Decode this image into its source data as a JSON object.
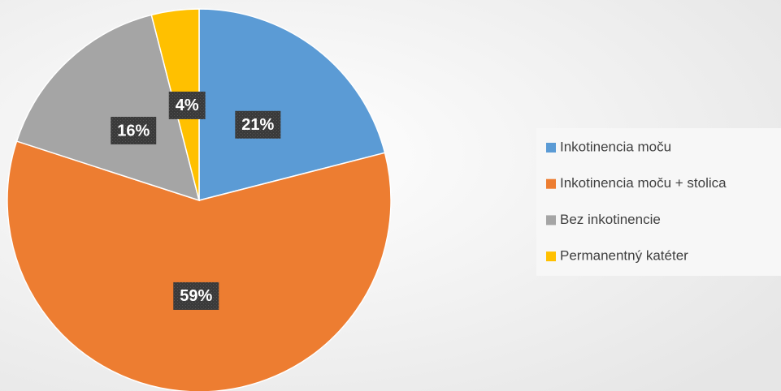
{
  "chart_data": {
    "type": "pie",
    "categories": [
      "Inkotinencia moču",
      "Inkotinencia moču + stolica",
      "Bez inkotinencie",
      "Permanentný katéter"
    ],
    "values": [
      21,
      59,
      16,
      4
    ],
    "value_labels": [
      "21%",
      "59%",
      "16%",
      "4%"
    ],
    "colors": [
      "#5b9bd5",
      "#ed7d31",
      "#a5a5a5",
      "#ffc000"
    ],
    "legend": "right"
  }
}
